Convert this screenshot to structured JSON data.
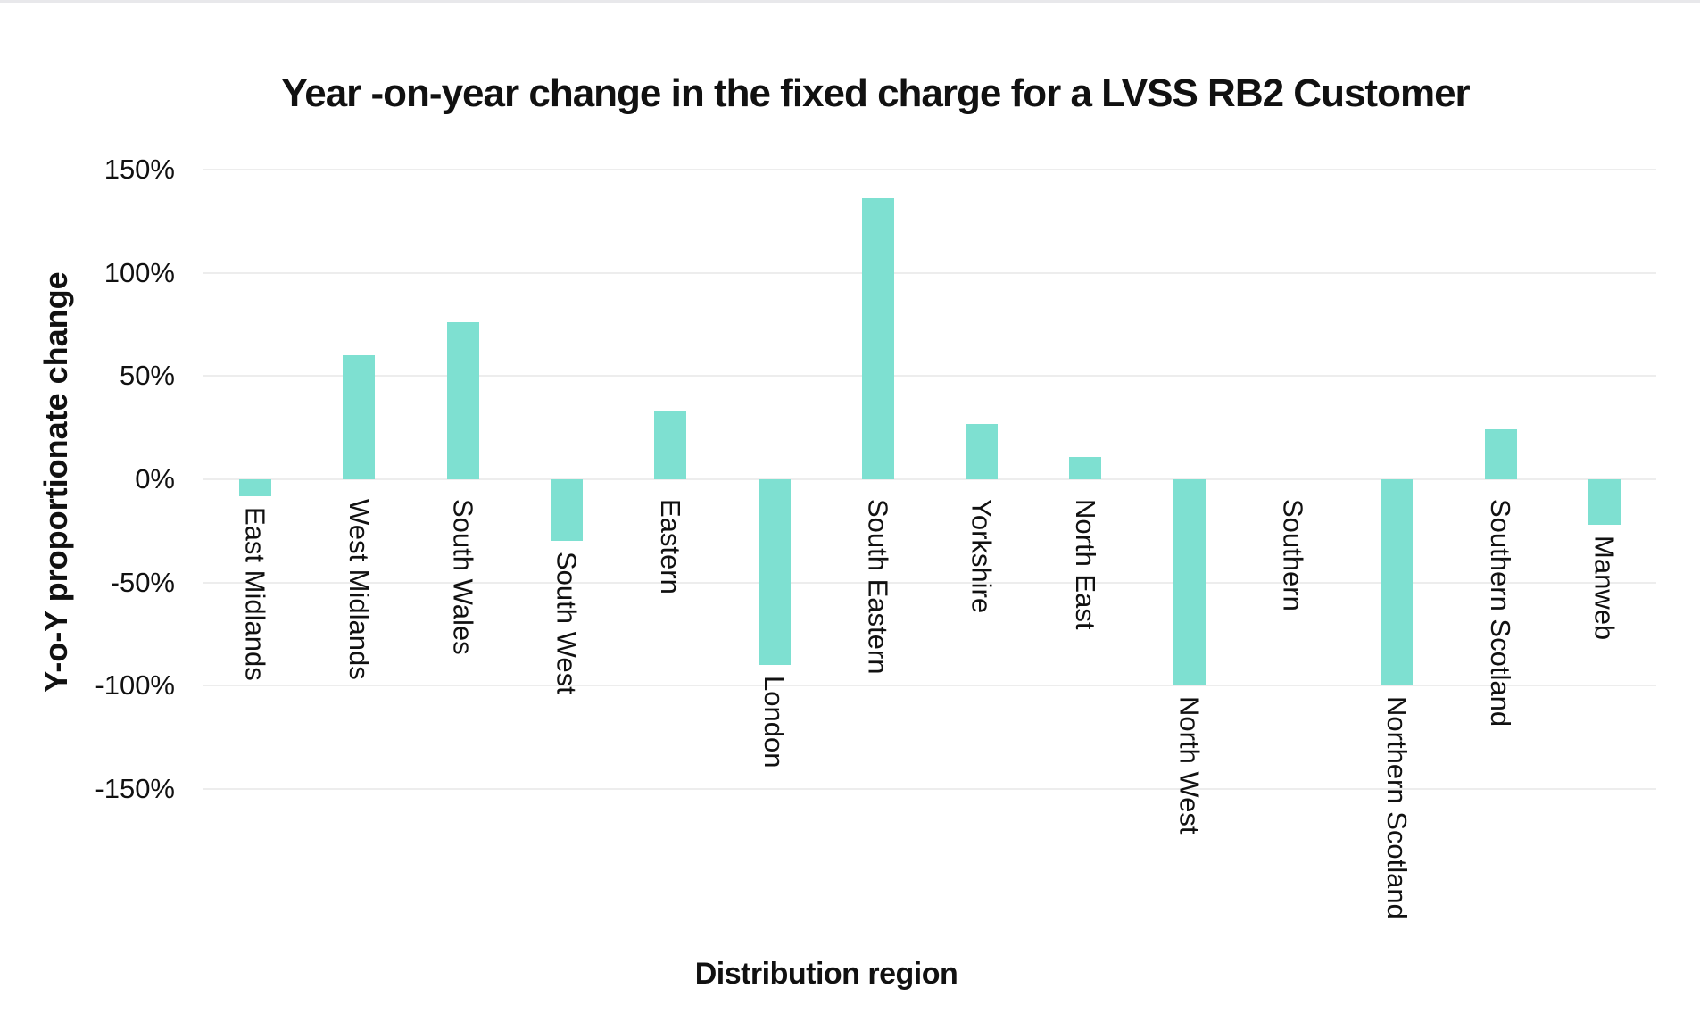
{
  "chart_data": {
    "type": "bar",
    "title": "Year -on-year change in the fixed charge for a LVSS RB2 Customer",
    "xlabel": "Distribution region",
    "ylabel": "Y-o-Y proportionate change",
    "categories": [
      "East Midlands",
      "West Midlands",
      "South Wales",
      "South West",
      "Eastern",
      "London",
      "South Eastern",
      "Yorkshire",
      "North East",
      "North West",
      "Southern",
      "Northern Scotland",
      "Southern Scotland",
      "Manweb"
    ],
    "values": [
      -8,
      60,
      76,
      -30,
      33,
      -90,
      136,
      27,
      11,
      -100,
      0,
      -100,
      24,
      -22
    ],
    "unit": "%",
    "yticks": [
      150,
      100,
      50,
      0,
      -50,
      -100,
      -150
    ],
    "ytick_labels": [
      "150%",
      "100%",
      "50%",
      "0%",
      "-50%",
      "-100%",
      "-150%"
    ],
    "ylim": [
      -175,
      175
    ],
    "grid": true,
    "legend": "none",
    "bar_color": "#7EE0D1",
    "grid_color": "#EDEDED",
    "text_color": "#111111",
    "top_border_color": "#E8E8EB"
  }
}
